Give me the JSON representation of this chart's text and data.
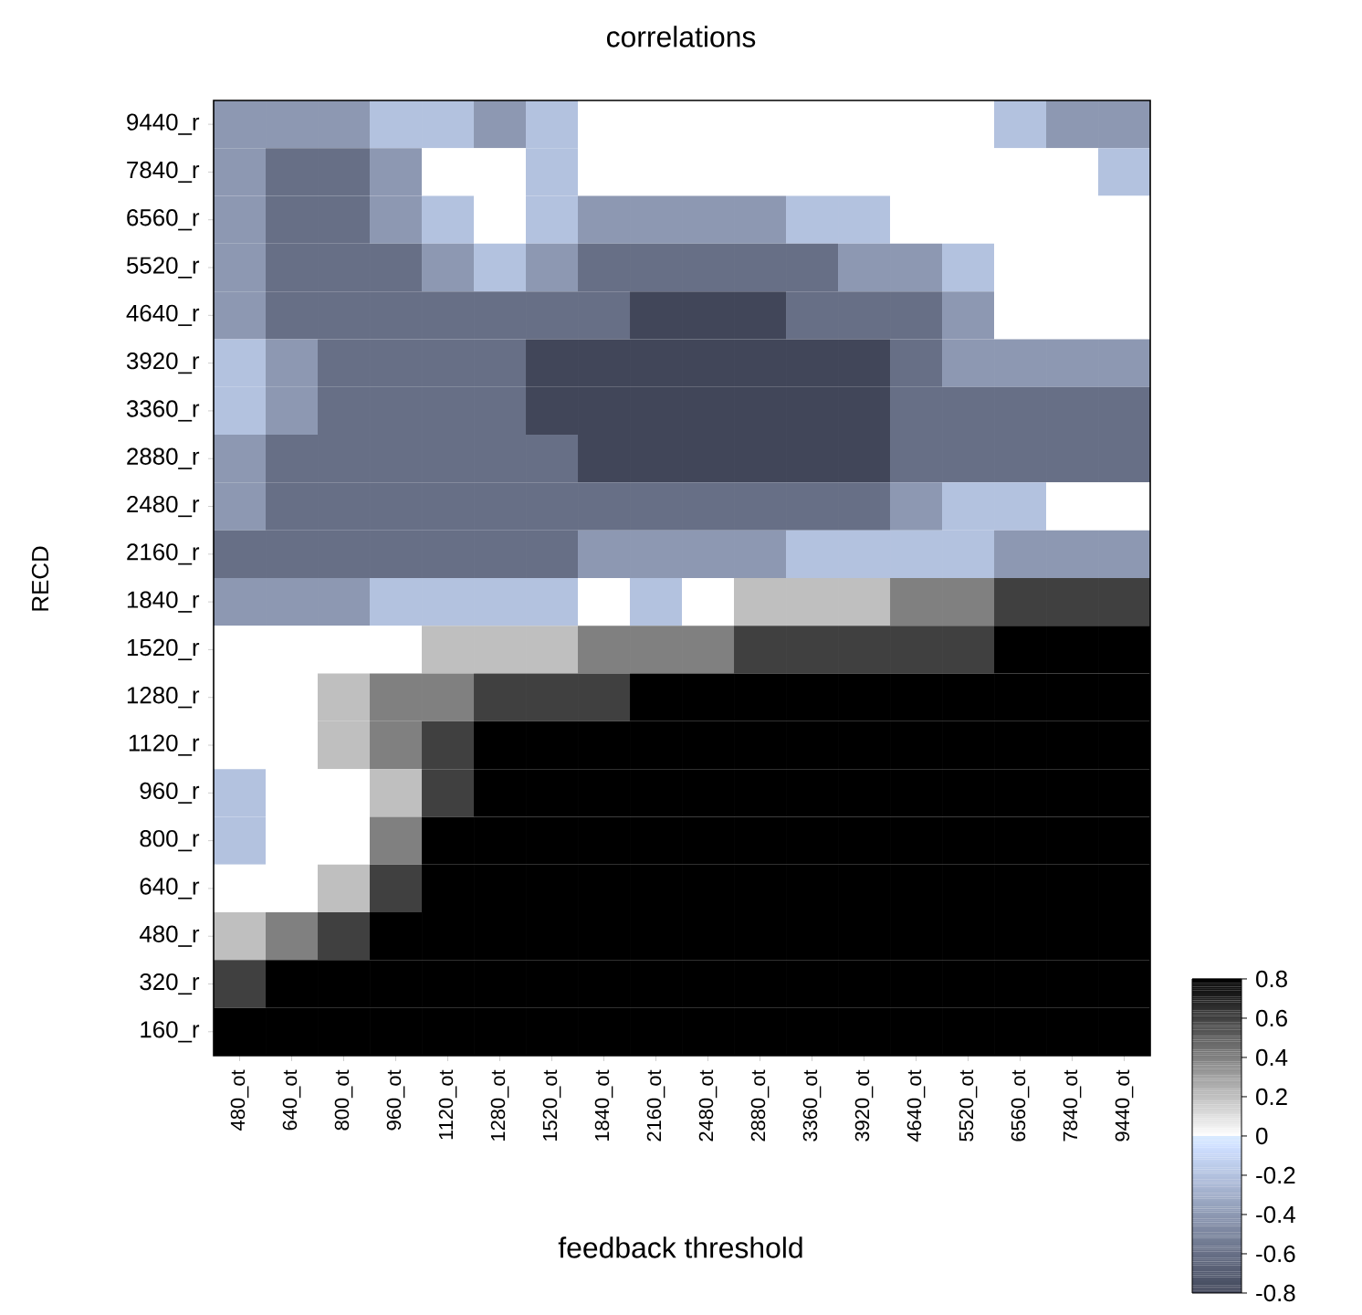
{
  "chart_data": {
    "type": "heatmap",
    "title": "correlations",
    "xlabel": "feedback threshold",
    "ylabel": "RECD",
    "categories": [
      "480_ot",
      "640_ot",
      "800_ot",
      "960_ot",
      "1120_ot",
      "1280_ot",
      "1520_ot",
      "1840_ot",
      "2160_ot",
      "2480_ot",
      "2880_ot",
      "3360_ot",
      "3920_ot",
      "4640_ot",
      "5520_ot",
      "6560_ot",
      "7840_ot",
      "9440_ot"
    ],
    "y_categories": [
      "9440_r",
      "7840_r",
      "6560_r",
      "5520_r",
      "4640_r",
      "3920_r",
      "3360_r",
      "2880_r",
      "2480_r",
      "2160_r",
      "1840_r",
      "1520_r",
      "1280_r",
      "1120_r",
      "960_r",
      "800_r",
      "640_r",
      "480_r",
      "320_r",
      "160_r"
    ],
    "cells": [
      [
        -0.4,
        -0.4,
        -0.4,
        -0.2,
        -0.2,
        -0.4,
        -0.2,
        0,
        0,
        0,
        0,
        0,
        0,
        0,
        0,
        -0.2,
        -0.4,
        -0.4
      ],
      [
        -0.4,
        -0.6,
        -0.6,
        -0.4,
        0,
        0,
        -0.2,
        0,
        0,
        0,
        0,
        0,
        0,
        0,
        0,
        0,
        0,
        -0.2
      ],
      [
        -0.4,
        -0.6,
        -0.6,
        -0.4,
        -0.2,
        0,
        -0.2,
        -0.4,
        -0.4,
        -0.4,
        -0.4,
        -0.2,
        -0.2,
        0,
        0,
        0,
        0,
        0
      ],
      [
        -0.4,
        -0.6,
        -0.6,
        -0.6,
        -0.4,
        -0.2,
        -0.4,
        -0.6,
        -0.6,
        -0.6,
        -0.6,
        -0.6,
        -0.4,
        -0.4,
        -0.2,
        0,
        0,
        0
      ],
      [
        -0.4,
        -0.6,
        -0.6,
        -0.6,
        -0.6,
        -0.6,
        -0.6,
        -0.6,
        -0.8,
        -0.8,
        -0.8,
        -0.6,
        -0.6,
        -0.6,
        -0.4,
        0,
        0,
        0
      ],
      [
        -0.2,
        -0.4,
        -0.6,
        -0.6,
        -0.6,
        -0.6,
        -0.8,
        -0.8,
        -0.8,
        -0.8,
        -0.8,
        -0.8,
        -0.8,
        -0.6,
        -0.4,
        -0.4,
        -0.4,
        -0.4
      ],
      [
        -0.2,
        -0.4,
        -0.6,
        -0.6,
        -0.6,
        -0.6,
        -0.8,
        -0.8,
        -0.8,
        -0.8,
        -0.8,
        -0.8,
        -0.8,
        -0.6,
        -0.6,
        -0.6,
        -0.6,
        -0.6
      ],
      [
        -0.4,
        -0.6,
        -0.6,
        -0.6,
        -0.6,
        -0.6,
        -0.6,
        -0.8,
        -0.8,
        -0.8,
        -0.8,
        -0.8,
        -0.8,
        -0.6,
        -0.6,
        -0.6,
        -0.6,
        -0.6
      ],
      [
        -0.4,
        -0.6,
        -0.6,
        -0.6,
        -0.6,
        -0.6,
        -0.6,
        -0.6,
        -0.6,
        -0.6,
        -0.6,
        -0.6,
        -0.6,
        -0.4,
        -0.2,
        -0.2,
        0,
        0
      ],
      [
        -0.6,
        -0.6,
        -0.6,
        -0.6,
        -0.6,
        -0.6,
        -0.6,
        -0.4,
        -0.4,
        -0.4,
        -0.4,
        -0.2,
        -0.2,
        -0.2,
        -0.2,
        -0.4,
        -0.4,
        -0.4
      ],
      [
        -0.4,
        -0.4,
        -0.4,
        -0.2,
        -0.2,
        -0.2,
        -0.2,
        0,
        -0.2,
        0,
        0.2,
        0.2,
        0.2,
        0.4,
        0.4,
        0.6,
        0.6,
        0.6
      ],
      [
        0,
        0,
        0,
        0,
        0.2,
        0.2,
        0.2,
        0.4,
        0.4,
        0.4,
        0.6,
        0.6,
        0.6,
        0.6,
        0.6,
        0.8,
        0.8,
        0.8
      ],
      [
        0,
        0,
        0.2,
        0.4,
        0.4,
        0.6,
        0.6,
        0.6,
        0.8,
        0.8,
        0.8,
        0.8,
        0.8,
        0.8,
        0.8,
        0.8,
        0.8,
        0.8
      ],
      [
        0,
        0,
        0.2,
        0.4,
        0.6,
        0.8,
        0.8,
        0.8,
        0.8,
        0.8,
        0.8,
        0.8,
        0.8,
        0.8,
        0.8,
        0.8,
        0.8,
        0.8
      ],
      [
        -0.2,
        0,
        0,
        0.2,
        0.6,
        0.8,
        0.8,
        0.8,
        0.8,
        0.8,
        0.8,
        0.8,
        0.8,
        0.8,
        0.8,
        0.8,
        0.8,
        0.8
      ],
      [
        -0.2,
        0,
        0,
        0.4,
        0.8,
        0.8,
        0.8,
        0.8,
        0.8,
        0.8,
        0.8,
        0.8,
        0.8,
        0.8,
        0.8,
        0.8,
        0.8,
        0.8
      ],
      [
        0,
        0,
        0.2,
        0.6,
        0.8,
        0.8,
        0.8,
        0.8,
        0.8,
        0.8,
        0.8,
        0.8,
        0.8,
        0.8,
        0.8,
        0.8,
        0.8,
        0.8
      ],
      [
        0.2,
        0.4,
        0.6,
        0.8,
        0.8,
        0.8,
        0.8,
        0.8,
        0.8,
        0.8,
        0.8,
        0.8,
        0.8,
        0.8,
        0.8,
        0.8,
        0.8,
        0.8
      ],
      [
        0.6,
        0.8,
        0.8,
        0.8,
        0.8,
        0.8,
        0.8,
        0.8,
        0.8,
        0.8,
        0.8,
        0.8,
        0.8,
        0.8,
        0.8,
        0.8,
        0.8,
        0.8
      ],
      [
        0.8,
        0.8,
        0.8,
        0.8,
        0.8,
        0.8,
        0.8,
        0.8,
        0.8,
        0.8,
        0.8,
        0.8,
        0.8,
        0.8,
        0.8,
        0.8,
        0.8,
        0.8
      ]
    ],
    "clim": [
      -0.8,
      0.8
    ],
    "cticks": [
      0.8,
      0.6,
      0.4,
      0.2,
      0,
      -0.2,
      -0.4,
      -0.6,
      -0.8
    ]
  }
}
